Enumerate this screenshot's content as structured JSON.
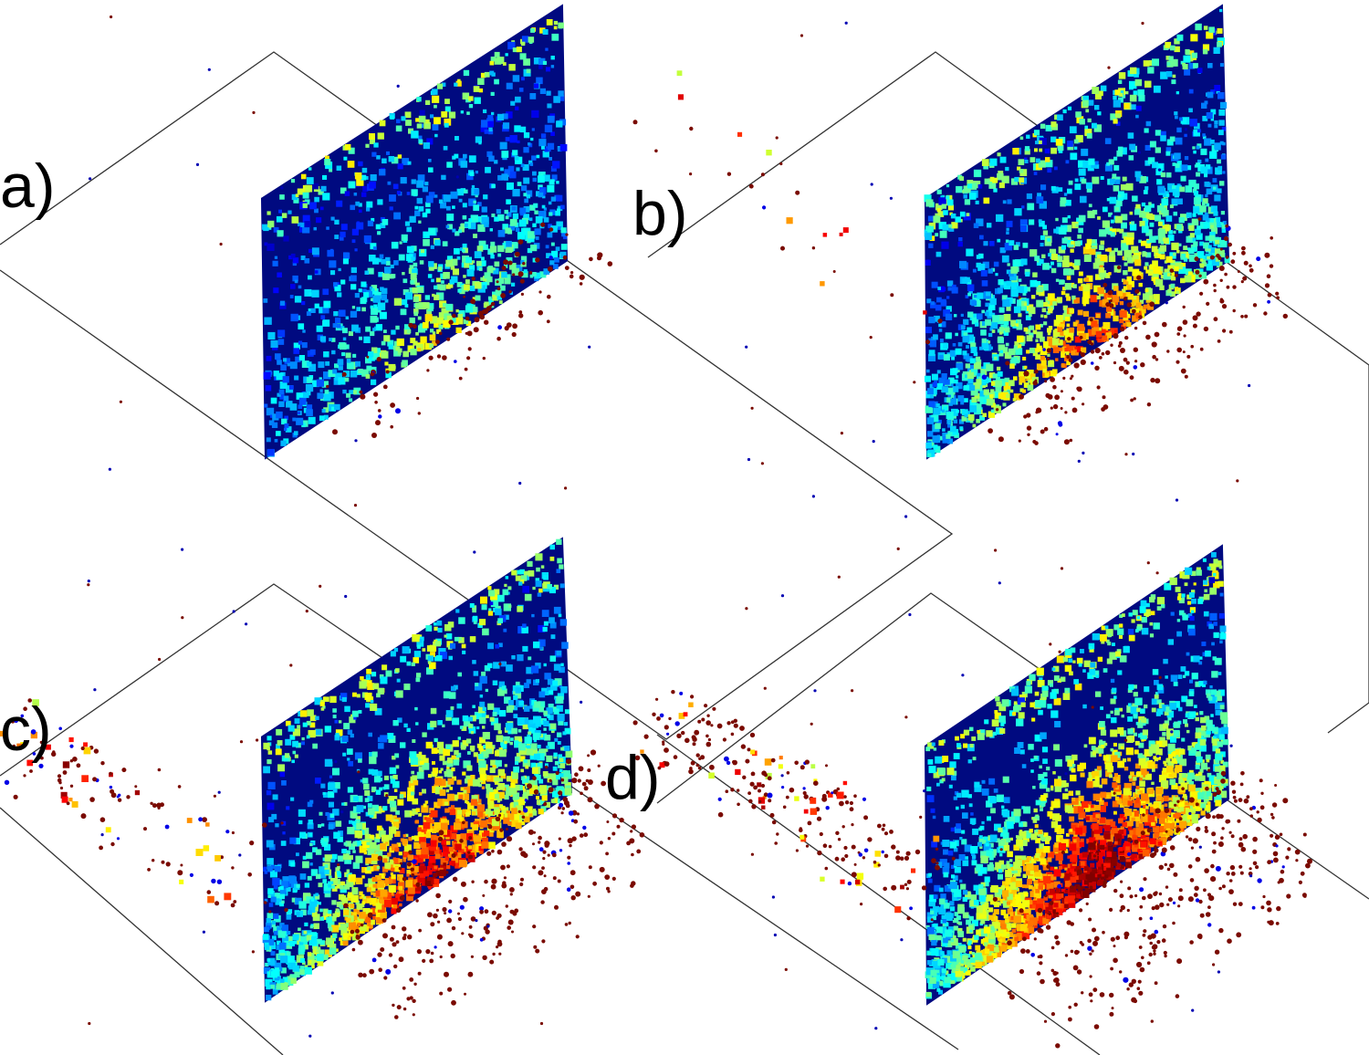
{
  "figure": {
    "panels": [
      {
        "id": "a",
        "label": "a)",
        "seed": 11,
        "intensity": 0.15,
        "scatter": 0.15,
        "cloud": 0
      },
      {
        "id": "b",
        "label": "b)",
        "seed": 23,
        "intensity": 0.55,
        "scatter": 0.5,
        "cloud": 0.12
      },
      {
        "id": "c",
        "label": "c)",
        "seed": 37,
        "intensity": 0.75,
        "scatter": 0.8,
        "cloud": 0.55
      },
      {
        "id": "d",
        "label": "d)",
        "seed": 53,
        "intensity": 0.95,
        "scatter": 1.0,
        "cloud": 1.0
      }
    ],
    "colormap": "jet",
    "colors": {
      "background": "#ffffff",
      "outline": "#333333",
      "wall_base": "#000a80",
      "debris": "#7a0a00"
    }
  }
}
